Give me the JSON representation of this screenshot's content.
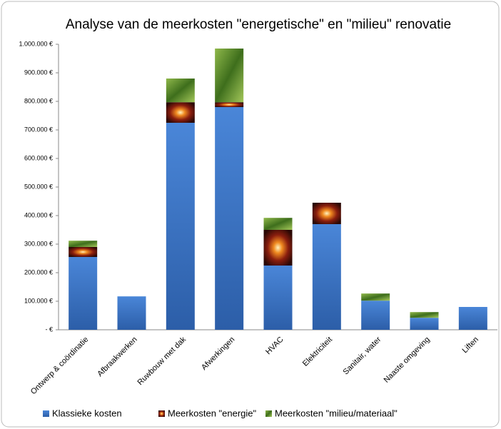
{
  "chart_data": {
    "type": "bar",
    "stacked": true,
    "title": "Analyse van de meerkosten \"energetische\" en \"milieu\" renovatie",
    "categories": [
      "Ontwerp & coördinatie",
      "Afbraakwerken",
      "Ruwbouw met dak",
      "Afwerkingen",
      "HVAC",
      "Elektriciteit",
      "Sanitair, water",
      "Naaste omgeving",
      "Liften"
    ],
    "series": [
      {
        "name": "Klassieke kosten",
        "color": "#3b73c4",
        "values": [
          255000,
          117000,
          725000,
          780000,
          225000,
          370000,
          102000,
          42000,
          80000
        ]
      },
      {
        "name": "Meerkosten \"energie\"",
        "color": "#8a1e0e",
        "values": [
          35000,
          0,
          72000,
          17000,
          125000,
          75000,
          0,
          0,
          0
        ]
      },
      {
        "name": "Meerkosten \"milieu/materiaal\"",
        "color": "#5e8f2c",
        "values": [
          22000,
          0,
          83000,
          188000,
          42000,
          0,
          25000,
          20000,
          0
        ]
      }
    ],
    "ylim": [
      0,
      1000000
    ],
    "yticks": [
      {
        "value": 0,
        "label": "- €"
      },
      {
        "value": 100000,
        "label": "100.000 €"
      },
      {
        "value": 200000,
        "label": "200.000 €"
      },
      {
        "value": 300000,
        "label": "300.000 €"
      },
      {
        "value": 400000,
        "label": "400.000 €"
      },
      {
        "value": 500000,
        "label": "500.000 €"
      },
      {
        "value": 600000,
        "label": "600.000 €"
      },
      {
        "value": 700000,
        "label": "700.000 €"
      },
      {
        "value": 800000,
        "label": "800.000 €"
      },
      {
        "value": 900000,
        "label": "900.000 €"
      },
      {
        "value": 1000000,
        "label": "1.000.000 €"
      }
    ],
    "grid": false,
    "legend": "bottom"
  }
}
